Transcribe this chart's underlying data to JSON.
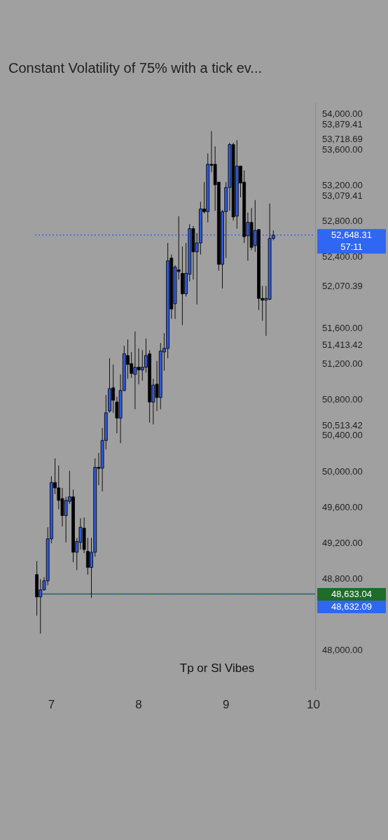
{
  "chart_data": {
    "type": "candlestick",
    "title": "Constant Volatility of 75% with a tick ev...",
    "categories": [
      null,
      null,
      null,
      null,
      "7",
      null,
      null,
      null,
      null,
      null,
      null,
      null,
      null,
      null,
      null,
      null,
      null,
      null,
      null,
      null,
      null,
      null,
      null,
      null,
      null,
      null,
      null,
      null,
      "8",
      null,
      null,
      null,
      null,
      null,
      null,
      null,
      null,
      null,
      null,
      null,
      null,
      null,
      null,
      null,
      null,
      null,
      null,
      null,
      null,
      null,
      null,
      null,
      "9",
      null,
      null,
      null,
      null,
      null,
      null,
      null,
      null,
      null,
      null,
      null,
      null,
      null,
      null,
      null,
      null,
      null,
      null,
      null,
      null,
      null,
      null,
      null,
      "10"
    ],
    "ohlc": [
      [
        48850,
        49000,
        48390,
        48600
      ],
      [
        48600,
        48800,
        48190,
        48680
      ],
      [
        48680,
        48820,
        48670,
        48780
      ],
      [
        48780,
        49380,
        48730,
        49250
      ],
      [
        49250,
        49950,
        49200,
        49880
      ],
      [
        49880,
        50150,
        49750,
        49820
      ],
      [
        49820,
        50070,
        49580,
        49680
      ],
      [
        49700,
        49820,
        49390,
        49510
      ],
      [
        49510,
        49720,
        49210,
        49680
      ],
      [
        49670,
        50010,
        49640,
        49720
      ],
      [
        49720,
        49800,
        48990,
        49100
      ],
      [
        49100,
        49260,
        48900,
        49220
      ],
      [
        49210,
        49480,
        49130,
        49380
      ],
      [
        49370,
        49490,
        49090,
        49130
      ],
      [
        49110,
        49260,
        48850,
        48930
      ],
      [
        48930,
        49260,
        48590,
        49100
      ],
      [
        49100,
        50150,
        49050,
        50050
      ],
      [
        50050,
        50210,
        49850,
        50040
      ],
      [
        50040,
        50490,
        49780,
        50350
      ],
      [
        50350,
        50860,
        50250,
        50660
      ],
      [
        50680,
        51270,
        50660,
        50930
      ],
      [
        50940,
        51200,
        50660,
        50800
      ],
      [
        50780,
        50840,
        50430,
        50600
      ],
      [
        50600,
        51090,
        50320,
        50910
      ],
      [
        50910,
        51410,
        50900,
        51320
      ],
      [
        51300,
        51480,
        51040,
        51200
      ],
      [
        51210,
        51340,
        51050,
        51100
      ],
      [
        51090,
        51570,
        50700,
        51170
      ],
      [
        51170,
        51380,
        50980,
        51140
      ],
      [
        51140,
        51360,
        51020,
        51170
      ],
      [
        51170,
        51490,
        51110,
        51300
      ],
      [
        51320,
        51360,
        50550,
        50780
      ],
      [
        50780,
        51040,
        50530,
        50970
      ],
      [
        50980,
        51240,
        50680,
        50830
      ],
      [
        50830,
        51440,
        50700,
        51350
      ],
      [
        51340,
        51550,
        51130,
        51380
      ],
      [
        51380,
        52560,
        51270,
        52360
      ],
      [
        52390,
        52430,
        51710,
        51820
      ],
      [
        51880,
        52310,
        51710,
        52290
      ],
      [
        52260,
        52860,
        52150,
        52240
      ],
      [
        52220,
        52520,
        51640,
        51990
      ],
      [
        51990,
        52560,
        51960,
        52220
      ],
      [
        52210,
        52770,
        52130,
        52720
      ],
      [
        52720,
        52750,
        52150,
        52460
      ],
      [
        52460,
        52670,
        51870,
        52560
      ],
      [
        52560,
        53020,
        52430,
        52940
      ],
      [
        52940,
        53240,
        52890,
        52910
      ],
      [
        52910,
        53560,
        52790,
        53440
      ],
      [
        53440,
        53810,
        53350,
        53430
      ],
      [
        53440,
        53640,
        52920,
        53210
      ],
      [
        53240,
        53240,
        52250,
        52320
      ],
      [
        52320,
        52930,
        52050,
        52910
      ],
      [
        52910,
        53240,
        52390,
        53180
      ],
      [
        53180,
        53680,
        52920,
        53660
      ],
      [
        53660,
        53680,
        52810,
        52850
      ],
      [
        52860,
        53710,
        52720,
        53420
      ],
      [
        53420,
        53420,
        53070,
        53230
      ],
      [
        53240,
        53370,
        52560,
        52630
      ],
      [
        52640,
        52900,
        52360,
        52790
      ],
      [
        52790,
        52950,
        52480,
        52510
      ],
      [
        52530,
        53040,
        52460,
        52700
      ],
      [
        52710,
        52710,
        51810,
        51940
      ],
      [
        51940,
        52080,
        51690,
        51920
      ],
      [
        51920,
        52080,
        51520,
        51940
      ],
      [
        51930,
        53000,
        51920,
        52610
      ],
      [
        52610,
        52700,
        52590,
        52648.31
      ],
      null,
      null,
      null,
      null,
      null,
      null,
      null,
      null,
      null,
      null,
      null
    ],
    "colors": [
      "#000000",
      "#2e5be6",
      "#2e5be6",
      "#2e5be6",
      "#2e5be6",
      "#000000",
      "#000000",
      "#000000",
      "#2e5be6",
      "#2e5be6",
      "#000000",
      "#2e5be6",
      "#2e5be6",
      "#000000",
      "#000000",
      "#2e5be6",
      "#2e5be6",
      "#000000",
      "#2e5be6",
      "#2e5be6",
      "#2e5be6",
      "#000000",
      "#000000",
      "#2e5be6",
      "#2e5be6",
      "#000000",
      "#000000",
      "#2e5be6",
      "#000000",
      "#2e5be6",
      "#2e5be6",
      "#000000",
      "#2e5be6",
      "#000000",
      "#2e5be6",
      "#2e5be6",
      "#2e5be6",
      "#000000",
      "#2e5be6",
      "#000000",
      "#000000",
      "#2e5be6",
      "#2e5be6",
      "#000000",
      "#2e5be6",
      "#2e5be6",
      "#000000",
      "#2e5be6",
      "#000000",
      "#000000",
      "#000000",
      "#2e5be6",
      "#2e5be6",
      "#2e5be6",
      "#000000",
      "#2e5be6",
      "#000000",
      "#000000",
      "#2e5be6",
      "#000000",
      "#2e5be6",
      "#000000",
      "#000000",
      "#2e5be6",
      "#2e5be6",
      "#2e5be6",
      null,
      null,
      null,
      null,
      null,
      null,
      null,
      null,
      null,
      null,
      null
    ],
    "ylim": [
      47560,
      54120
    ],
    "yticks": [
      {
        "value": 48000,
        "label": "48,000.00"
      },
      {
        "value": 48800,
        "label": "48,800.00"
      },
      {
        "value": 49200,
        "label": "49,200.00"
      },
      {
        "value": 49600,
        "label": "49,600.00"
      },
      {
        "value": 50000,
        "label": "50,000.00"
      },
      {
        "value": 50400,
        "label": "50,400.00"
      },
      {
        "value": 50513.42,
        "label": "50,513.42"
      },
      {
        "value": 50800,
        "label": "50,800.00"
      },
      {
        "value": 51200,
        "label": "51,200.00"
      },
      {
        "value": 51413.42,
        "label": "51,413.42"
      },
      {
        "value": 51600,
        "label": "51,600.00"
      },
      {
        "value": 52070.39,
        "label": "52,070.39"
      },
      {
        "value": 52400,
        "label": "52,400.00"
      },
      {
        "value": 52800,
        "label": "52,800.00"
      },
      {
        "value": 53079.41,
        "label": "53,079.41"
      },
      {
        "value": 53200,
        "label": "53,200.00"
      },
      {
        "value": 53600,
        "label": "53,600.00"
      },
      {
        "value": 53718.69,
        "label": "53,718.69"
      },
      {
        "value": 53879.41,
        "label": "53,879.41"
      },
      {
        "value": 54000,
        "label": "54,000.00"
      }
    ],
    "grid": false,
    "ref_lines": [
      {
        "axis": "y",
        "value": 48633.04,
        "label": "48,633.04",
        "color": "#1e6b2a",
        "line_style": "solid"
      },
      {
        "axis": "y",
        "value": 48632.09,
        "label": "48,632.09",
        "color": "#2f66f2",
        "line_style": "dotted"
      },
      {
        "axis": "y",
        "value": 52648.31,
        "label": "52,648.31\n57:11",
        "color": "#2f66f2",
        "line_style": "dotted"
      }
    ],
    "annotations": [
      "Tp or Sl Vibes"
    ]
  }
}
